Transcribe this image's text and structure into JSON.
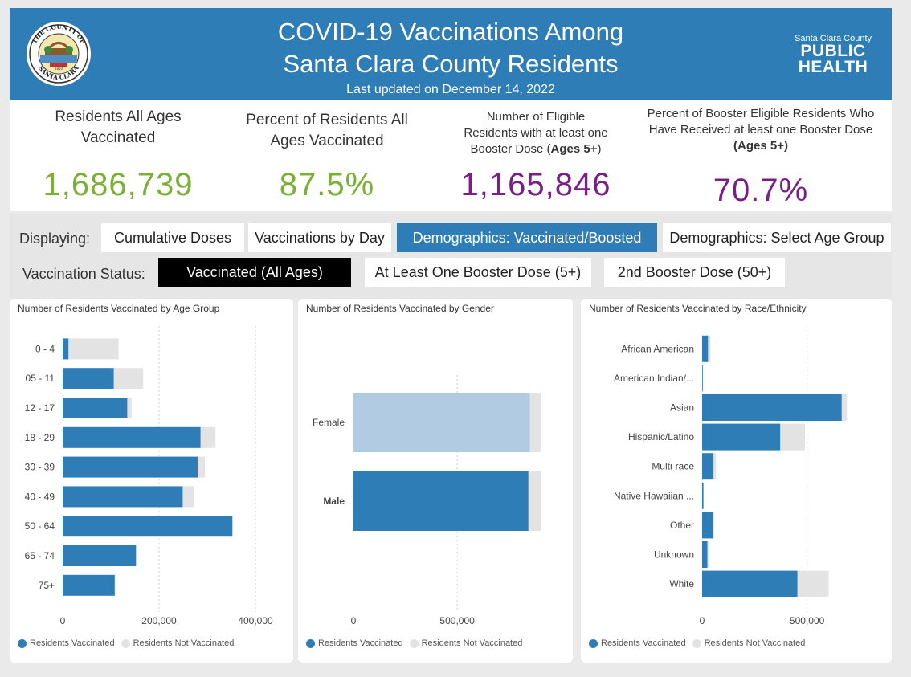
{
  "header": {
    "title_line1": "COVID-19 Vaccinations Among",
    "title_line2": "Santa Clara County Residents",
    "updated": "Last updated on December 14, 2022",
    "seal_text_top": "THE COUNTY OF",
    "seal_text_bottom": "SANTA CLARA",
    "seal_year": "1850",
    "logo_small": "Santa Clara County",
    "logo_line1": "PUBLIC",
    "logo_line2": "HEALTH"
  },
  "kpis": [
    {
      "label_lines": [
        "Residents All Ages",
        "Vaccinated"
      ],
      "value": "1,686,739"
    },
    {
      "label_lines": [
        "Percent of Residents All",
        "Ages Vaccinated"
      ],
      "value": "87.5%"
    },
    {
      "label_lines": [
        "Number of Eligible",
        "Residents with at least one"
      ],
      "label_pre": "Booster Dose (",
      "label_bold": "Ages 5+",
      "label_post": ")",
      "value": "1,165,846"
    },
    {
      "label_lines": [
        "Percent of Booster Eligible Residents Who",
        "Have Received at least one Booster Dose"
      ],
      "label_bold_line": "(Ages 5+)",
      "value": "70.7%"
    }
  ],
  "controls": {
    "displaying_label": "Displaying:",
    "display_options": [
      "Cumulative Doses",
      "Vaccinations by Day",
      "Demographics: Vaccinated/Boosted",
      "Demographics: Select Age Group"
    ],
    "display_selected": "Demographics: Vaccinated/Boosted",
    "status_label": "Vaccination Status:",
    "status_options": [
      "Vaccinated (All Ages)",
      "At Least One Booster Dose (5+)",
      "2nd Booster Dose (50+)"
    ],
    "status_selected": "Vaccinated (All Ages)"
  },
  "colors": {
    "header_blue": "#2e7db6",
    "vaccinated": "#2e7db6",
    "vaccinated_highlight_female": "#b1cce2",
    "not_vaccinated": "#e3e3e3",
    "kpi_green": "#7ab135",
    "kpi_purple": "#7a1f86"
  },
  "legend": {
    "vaccinated": "Residents Vaccinated",
    "not_vaccinated": "Residents Not Vaccinated"
  },
  "chart_data": [
    {
      "type": "bar",
      "orientation": "horizontal",
      "stacked": true,
      "title": "Number of Residents Vaccinated by Age Group",
      "categories": [
        "0 - 4",
        "05 - 11",
        "12 - 17",
        "18 - 29",
        "30 - 39",
        "40 - 49",
        "50 - 64",
        "65 - 74",
        "75+"
      ],
      "series": [
        {
          "name": "Residents Vaccinated",
          "values": [
            12000,
            106000,
            134000,
            286000,
            280000,
            249000,
            352000,
            152000,
            108000
          ]
        },
        {
          "name": "Residents Not Vaccinated",
          "values": [
            104000,
            61000,
            9000,
            31000,
            15000,
            23000,
            1000,
            1000,
            1000
          ]
        }
      ],
      "xlim": [
        0,
        440000
      ],
      "xticks": [
        0,
        200000,
        400000
      ],
      "xtick_labels": [
        "0",
        "200,000",
        "400,000"
      ],
      "grid": true,
      "legend": "bottom-left"
    },
    {
      "type": "bar",
      "orientation": "horizontal",
      "stacked": true,
      "title": "Number of Residents Vaccinated by Gender",
      "categories": [
        "Female",
        "Male"
      ],
      "series": [
        {
          "name": "Residents Vaccinated",
          "values": [
            850000,
            843000
          ]
        },
        {
          "name": "Residents Not Vaccinated",
          "values": [
            52000,
            61000
          ]
        }
      ],
      "xlim": [
        0,
        1030000
      ],
      "xticks": [
        0,
        500000
      ],
      "xtick_labels": [
        "0",
        "500,000"
      ],
      "grid": true,
      "legend": "bottom-left"
    },
    {
      "type": "bar",
      "orientation": "horizontal",
      "stacked": true,
      "title": "Number of Residents Vaccinated by Race/Ethnicity",
      "categories": [
        "African American",
        "American Indian/...",
        "Asian",
        "Hispanic/Latino",
        "Multi-race",
        "Native Hawaiian ...",
        "Other",
        "Unknown",
        "White"
      ],
      "series": [
        {
          "name": "Residents Vaccinated",
          "values": [
            28000,
            3000,
            665000,
            372000,
            54000,
            6000,
            54000,
            25000,
            454000
          ]
        },
        {
          "name": "Residents Not Vaccinated",
          "values": [
            12000,
            1000,
            25000,
            118000,
            12000,
            2000,
            1000,
            5000,
            149000
          ]
        }
      ],
      "xlim": [
        0,
        800000
      ],
      "xticks": [
        0,
        500000
      ],
      "xtick_labels": [
        "0",
        "500,000"
      ],
      "grid": true,
      "legend": "bottom-left"
    }
  ]
}
